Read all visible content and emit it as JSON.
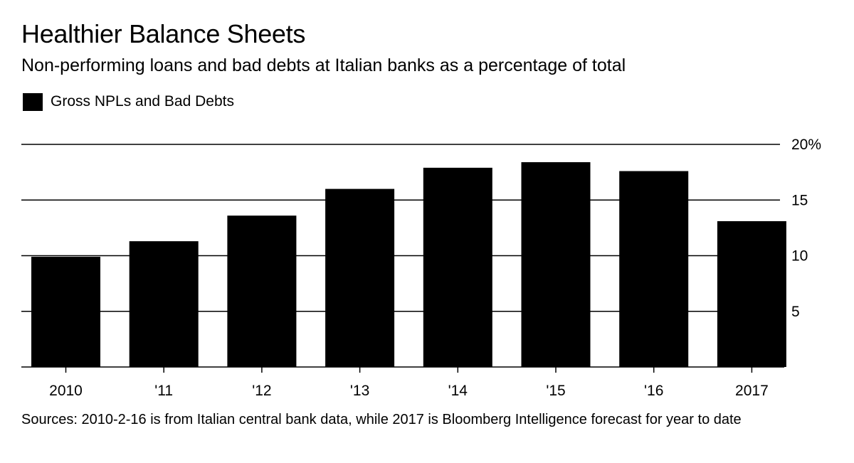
{
  "chart_data": {
    "type": "bar",
    "title": "Healthier Balance Sheets",
    "subtitle": "Non-performing loans and bad debts at Italian banks as a percentage of total",
    "legend": [
      "Gross NPLs and Bad Debts"
    ],
    "categories": [
      "2010",
      "'11",
      "'12",
      "'13",
      "'14",
      "'15",
      "'16",
      "2017"
    ],
    "series": [
      {
        "name": "Gross NPLs and Bad Debts",
        "values": [
          9.9,
          11.3,
          13.6,
          16.0,
          17.9,
          18.4,
          17.6,
          13.1
        ]
      }
    ],
    "y_ticks": [
      {
        "value": 5,
        "label": "5"
      },
      {
        "value": 10,
        "label": "10"
      },
      {
        "value": 15,
        "label": "15"
      },
      {
        "value": 20,
        "label": "20%"
      }
    ],
    "ylim": [
      0,
      20
    ],
    "xlabel": "",
    "ylabel": "",
    "grid": true,
    "y_axis_side": "right",
    "legend_position": "top-left",
    "bar_color": "#000000",
    "source": "Sources: 2010-2-16 is from Italian central bank data, while 2017 is Bloomberg Intelligence forecast for year to date"
  }
}
